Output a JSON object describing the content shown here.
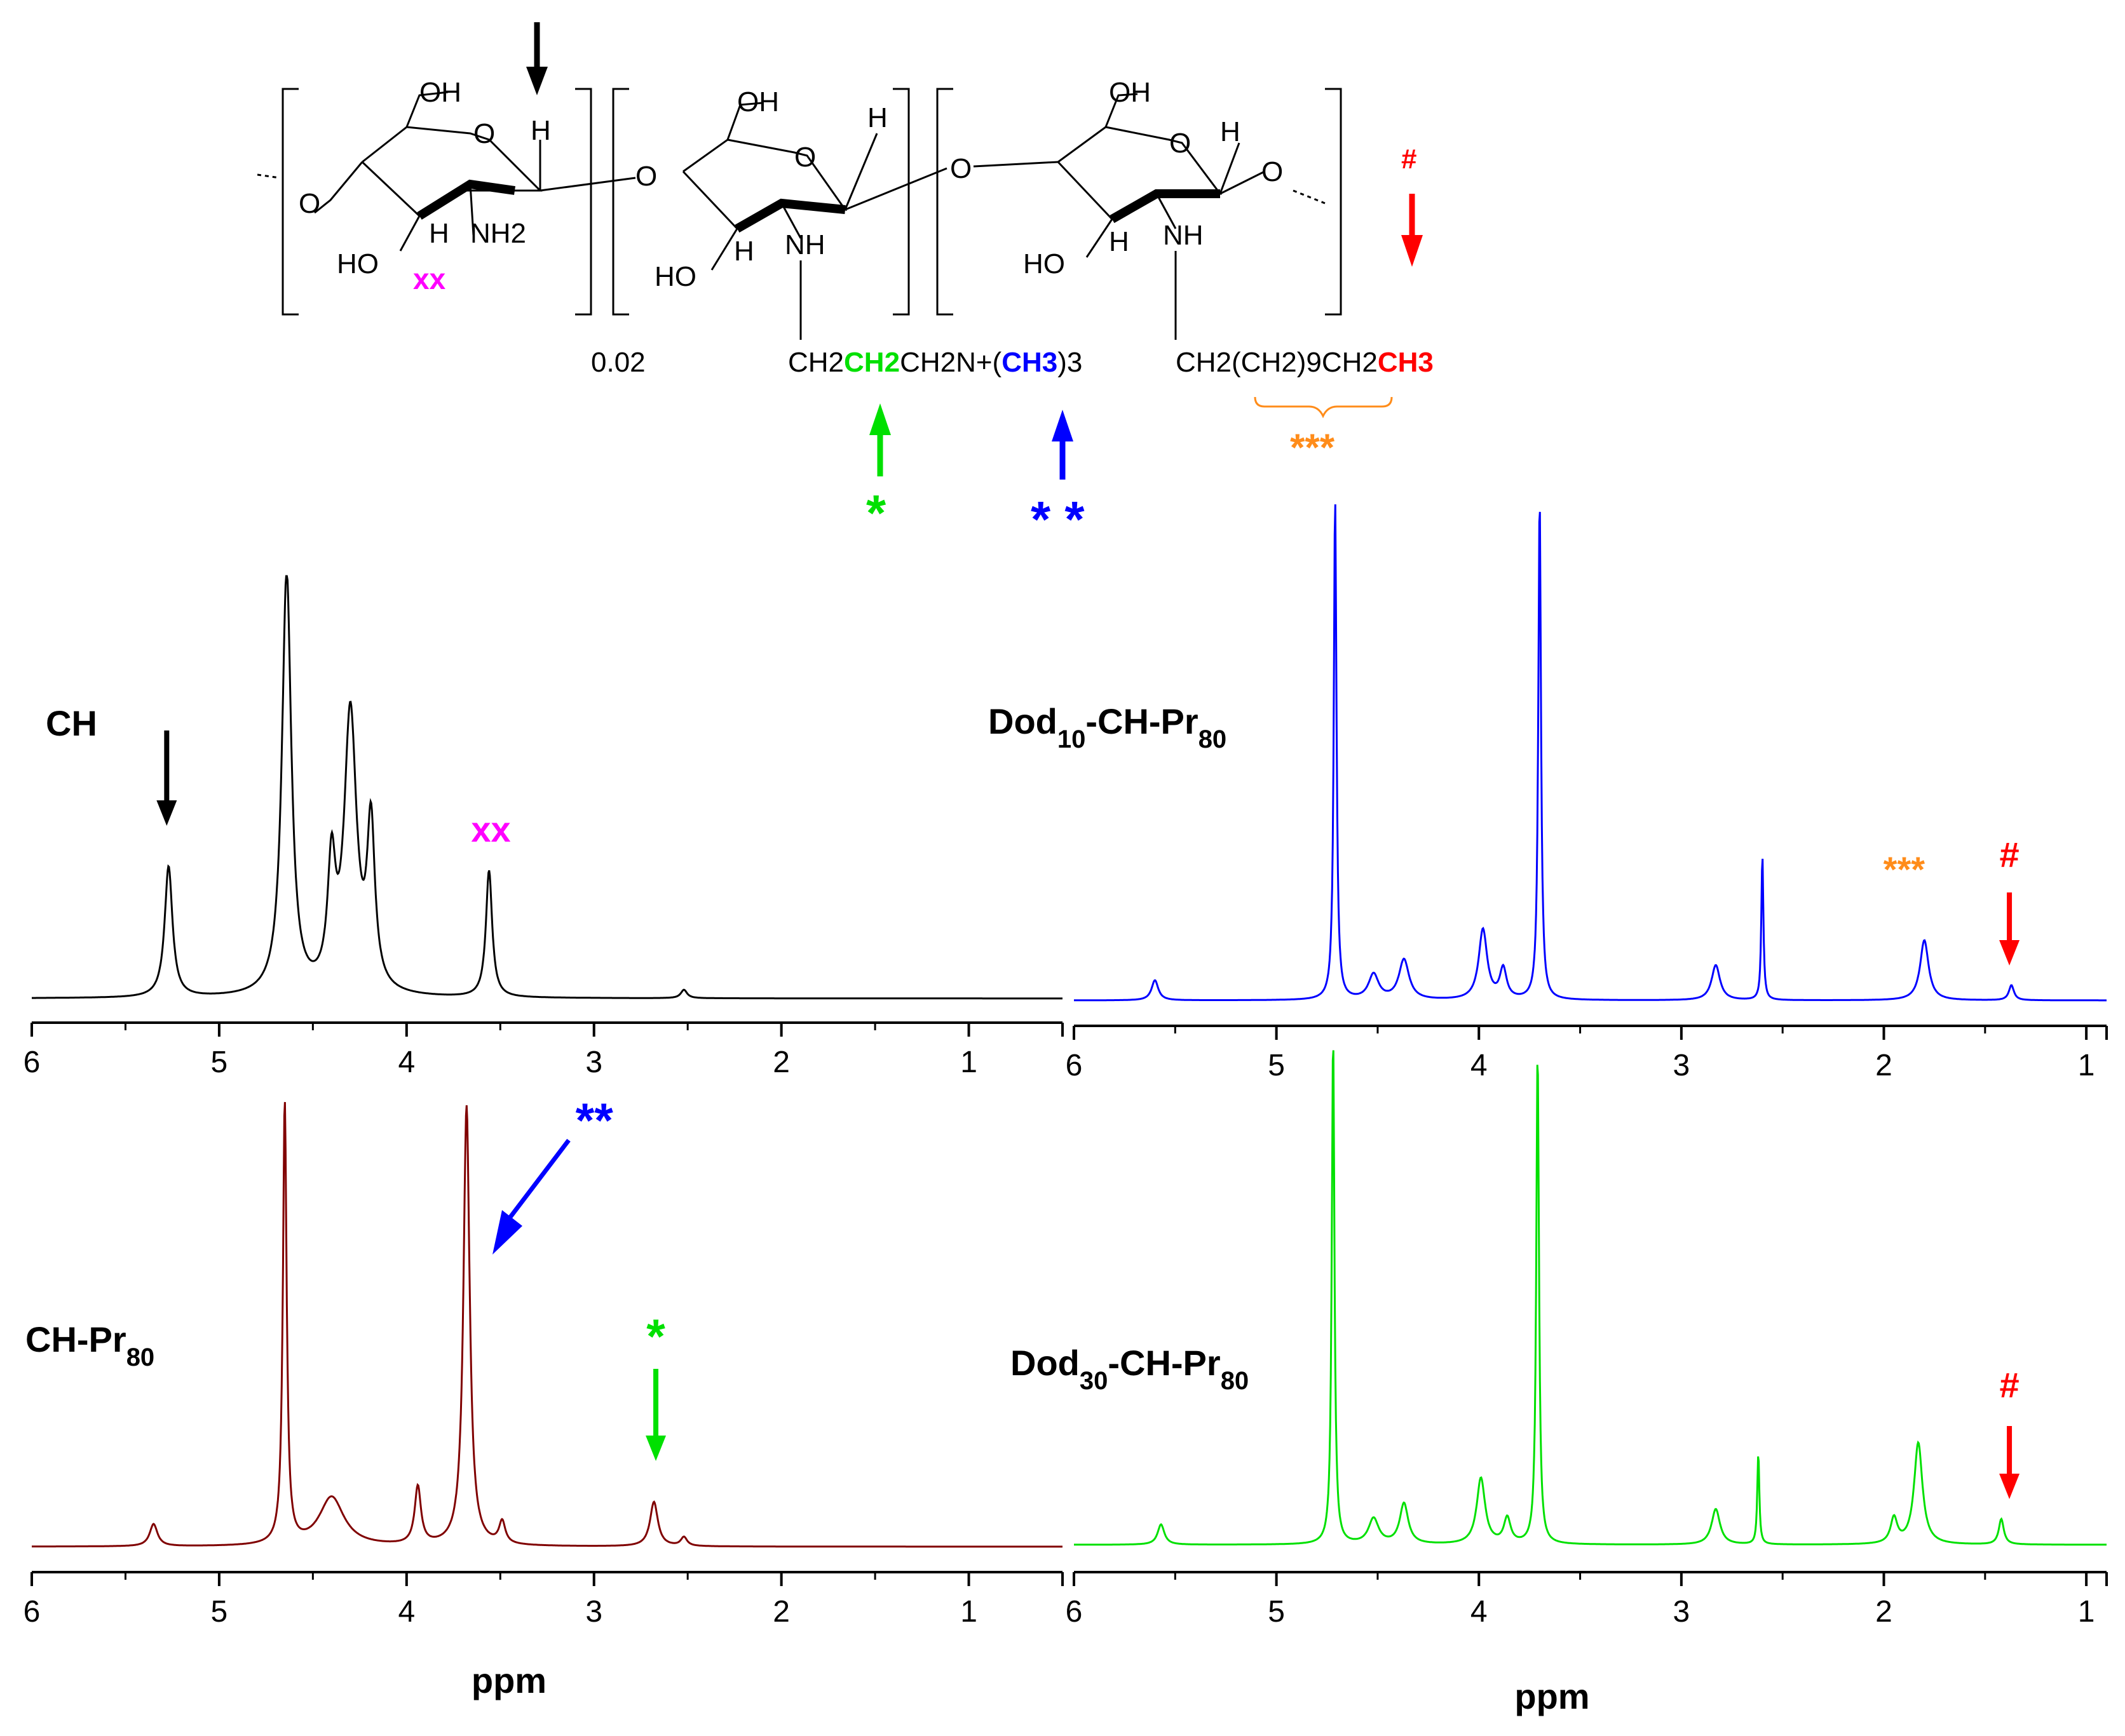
{
  "structure": {
    "unit1": {
      "oh_top": "OH",
      "ring_o": "O",
      "h_right": "H",
      "o_left": "O",
      "o_link": "O",
      "ho": "HO",
      "h_low": "H",
      "nh2": "NH2",
      "xx": "xx"
    },
    "subscript_002": "0.02",
    "unit2": {
      "oh_top": "OH",
      "ring_o": "O",
      "h_right": "H",
      "ho": "HO",
      "h_low": "H",
      "nh": "NH",
      "chain": [
        "CH2",
        "CH2",
        "CH2N+(",
        "CH3",
        ")3"
      ],
      "star": "*"
    },
    "o_link2": "O",
    "unit3": {
      "oh_top": "OH",
      "ring_o": "O",
      "h_right": "H",
      "o_right": "O",
      "ho": "HO",
      "h_low": "H",
      "nh": "NH",
      "chain": [
        "CH2(CH2)9CH2",
        "CH3"
      ],
      "star3": "***",
      "hash": "#"
    },
    "double_star": "* *"
  },
  "colors": {
    "black": "#000000",
    "magenta": "#ff00ff",
    "green": "#00ff00",
    "blue": "#0000ff",
    "red": "#ff0000",
    "orange": "#ff8c1a",
    "ch_line": "#000000",
    "chpr_line": "#800000",
    "dod10_line": "#0000ff",
    "dod30_line": "#00e000"
  },
  "panels": [
    {
      "id": "CH",
      "label_main": "CH",
      "label_sub": "",
      "label_tail": "",
      "color": "#000000",
      "xaxis_ticks": [
        6,
        5,
        4,
        3,
        2,
        1
      ],
      "xlabel": "",
      "annotations": [
        {
          "type": "arrow-down",
          "at_ppm": 5.28,
          "color": "#000000"
        },
        {
          "type": "text",
          "text": "xx",
          "at_ppm": 3.55,
          "color": "#ff00ff"
        }
      ]
    },
    {
      "id": "Dod10",
      "label_main": "Dod",
      "label_sub": "10",
      "label_tail": "-CH-Pr",
      "label_sub2": "80",
      "color": "#0000ff",
      "xaxis_ticks": [
        6,
        5,
        4,
        3,
        2,
        1
      ],
      "xlabel": "",
      "annotations": [
        {
          "type": "text",
          "text": "***",
          "at_ppm": 1.9,
          "color": "#ff8c1a"
        },
        {
          "type": "text",
          "text": "#",
          "at_ppm": 1.38,
          "color": "#ff0000"
        },
        {
          "type": "arrow-down",
          "at_ppm": 1.38,
          "color": "#ff0000"
        }
      ]
    },
    {
      "id": "CHPr80",
      "label_main": "CH-Pr",
      "label_sub": "80",
      "label_tail": "",
      "color": "#800000",
      "xaxis_ticks": [
        6,
        5,
        4,
        3,
        2,
        1
      ],
      "xlabel": "ppm",
      "annotations": [
        {
          "type": "text",
          "text": "**",
          "at_ppm": 3.1,
          "color": "#0000ff"
        },
        {
          "type": "text",
          "text": "*",
          "at_ppm": 2.67,
          "color": "#00e000"
        },
        {
          "type": "arrow-down",
          "at_ppm": 2.67,
          "color": "#00e000"
        }
      ]
    },
    {
      "id": "Dod30",
      "label_main": "Dod",
      "label_sub": "30",
      "label_tail": "-CH-Pr",
      "label_sub2": "80",
      "color": "#00e000",
      "xaxis_ticks": [
        6,
        5,
        4,
        3,
        2,
        1
      ],
      "xlabel": "ppm",
      "annotations": [
        {
          "type": "text",
          "text": "#",
          "at_ppm": 1.38,
          "color": "#ff0000"
        },
        {
          "type": "arrow-down",
          "at_ppm": 1.38,
          "color": "#ff0000"
        }
      ]
    }
  ],
  "chart_data": [
    {
      "type": "line",
      "title": "CH",
      "xlabel": "",
      "ylabel": "",
      "xlim": [
        6,
        0.5
      ],
      "x_ticks": [
        6,
        5,
        4,
        3,
        2,
        1
      ],
      "peaks": [
        {
          "ppm": 5.27,
          "height": 0.31,
          "width": 0.025
        },
        {
          "ppm": 4.64,
          "height": 1.0,
          "width": 0.03
        },
        {
          "ppm": 4.4,
          "height": 0.28,
          "width": 0.025
        },
        {
          "ppm": 4.3,
          "height": 0.66,
          "width": 0.04
        },
        {
          "ppm": 4.19,
          "height": 0.38,
          "width": 0.025
        },
        {
          "ppm": 3.56,
          "height": 0.3,
          "width": 0.02
        },
        {
          "ppm": 2.52,
          "height": 0.02,
          "width": 0.02
        }
      ]
    },
    {
      "type": "line",
      "title": "Dod10-CH-Pr80",
      "xlabel": "",
      "ylabel": "",
      "xlim": [
        6,
        1
      ],
      "x_ticks": [
        6,
        5,
        4,
        3,
        2,
        1
      ],
      "peaks": [
        {
          "ppm": 5.6,
          "height": 0.04,
          "width": 0.02
        },
        {
          "ppm": 4.71,
          "height": 1.0,
          "width": 0.008
        },
        {
          "ppm": 4.52,
          "height": 0.05,
          "width": 0.03
        },
        {
          "ppm": 4.37,
          "height": 0.08,
          "width": 0.03
        },
        {
          "ppm": 3.98,
          "height": 0.14,
          "width": 0.025
        },
        {
          "ppm": 3.88,
          "height": 0.06,
          "width": 0.02
        },
        {
          "ppm": 3.7,
          "height": 1.0,
          "width": 0.008
        },
        {
          "ppm": 2.83,
          "height": 0.07,
          "width": 0.025
        },
        {
          "ppm": 2.6,
          "height": 0.29,
          "width": 0.006
        },
        {
          "ppm": 1.8,
          "height": 0.12,
          "width": 0.025
        },
        {
          "ppm": 1.37,
          "height": 0.03,
          "width": 0.015
        }
      ]
    },
    {
      "type": "line",
      "title": "CH-Pr80",
      "xlabel": "ppm",
      "ylabel": "",
      "xlim": [
        6,
        0.5
      ],
      "x_ticks": [
        6,
        5,
        4,
        3,
        2,
        1
      ],
      "peaks": [
        {
          "ppm": 5.35,
          "height": 0.05,
          "width": 0.025
        },
        {
          "ppm": 4.65,
          "height": 1.0,
          "width": 0.012
        },
        {
          "ppm": 4.4,
          "height": 0.11,
          "width": 0.08
        },
        {
          "ppm": 3.94,
          "height": 0.13,
          "width": 0.02
        },
        {
          "ppm": 3.68,
          "height": 0.99,
          "width": 0.02
        },
        {
          "ppm": 3.49,
          "height": 0.05,
          "width": 0.02
        },
        {
          "ppm": 2.68,
          "height": 0.1,
          "width": 0.025
        },
        {
          "ppm": 2.52,
          "height": 0.02,
          "width": 0.02
        }
      ]
    },
    {
      "type": "line",
      "title": "Dod30-CH-Pr80",
      "xlabel": "ppm",
      "ylabel": "",
      "xlim": [
        6,
        1
      ],
      "x_ticks": [
        6,
        5,
        4,
        3,
        2,
        1
      ],
      "peaks": [
        {
          "ppm": 5.57,
          "height": 0.04,
          "width": 0.02
        },
        {
          "ppm": 4.72,
          "height": 1.0,
          "width": 0.008
        },
        {
          "ppm": 4.52,
          "height": 0.05,
          "width": 0.03
        },
        {
          "ppm": 4.37,
          "height": 0.08,
          "width": 0.025
        },
        {
          "ppm": 3.99,
          "height": 0.13,
          "width": 0.025
        },
        {
          "ppm": 3.86,
          "height": 0.05,
          "width": 0.02
        },
        {
          "ppm": 3.71,
          "height": 0.97,
          "width": 0.008
        },
        {
          "ppm": 2.83,
          "height": 0.07,
          "width": 0.025
        },
        {
          "ppm": 2.62,
          "height": 0.18,
          "width": 0.006
        },
        {
          "ppm": 1.95,
          "height": 0.05,
          "width": 0.02
        },
        {
          "ppm": 1.83,
          "height": 0.2,
          "width": 0.025
        },
        {
          "ppm": 1.42,
          "height": 0.05,
          "width": 0.015
        }
      ]
    }
  ]
}
